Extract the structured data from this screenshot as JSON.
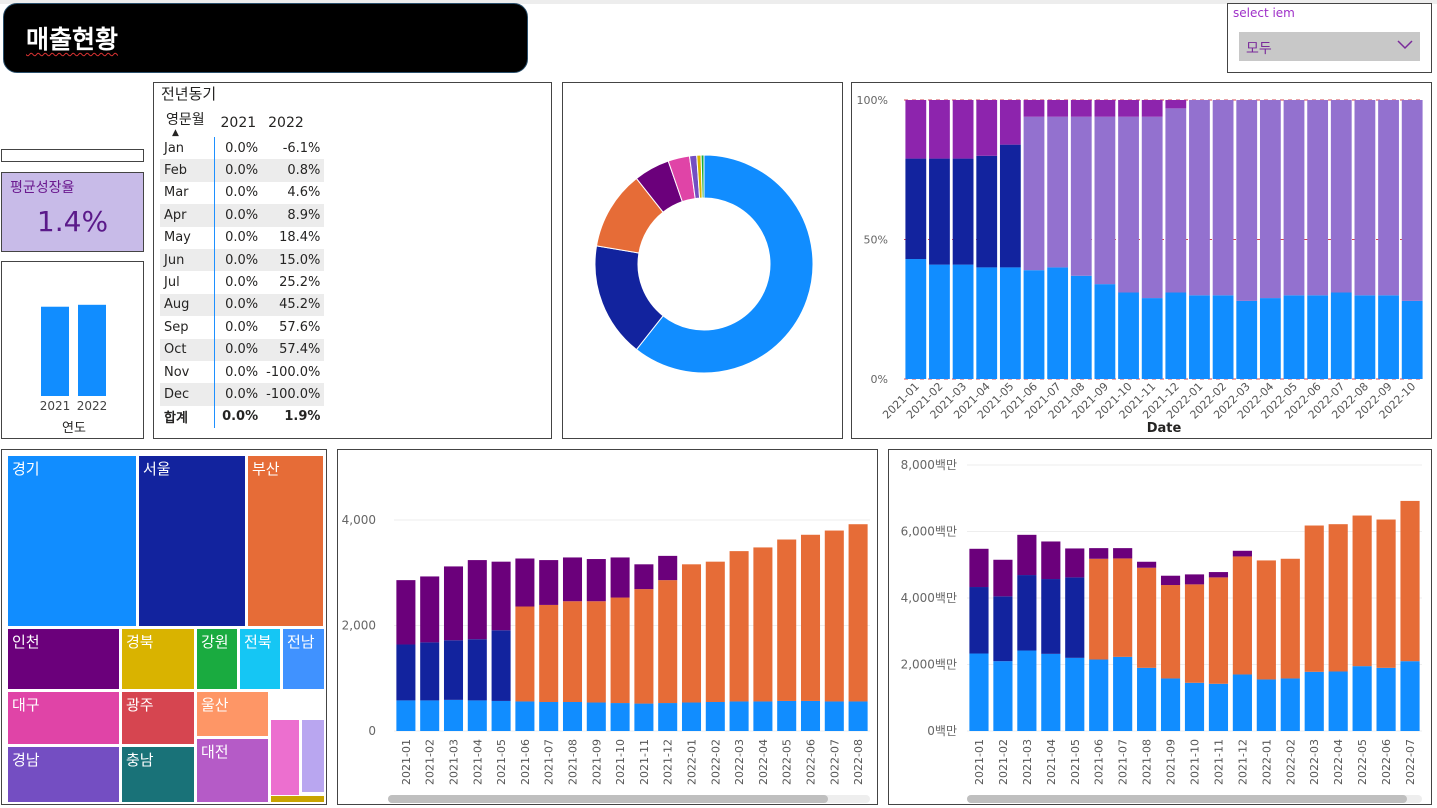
{
  "header": {
    "title": "매출현황"
  },
  "slicer": {
    "label": "select iem",
    "value": "모두",
    "chevron_icon": "chevron-down-icon"
  },
  "kpi": {
    "label": "평균성장율",
    "value": "1.4%"
  },
  "colors": {
    "blue": "#118dff",
    "navy": "#12239e",
    "orange": "#e66c37",
    "purple": "#6b007b",
    "magenta": "#e044a7",
    "lavender": "#9371cf",
    "violet": "#8d24ad",
    "kpi_bg": "#c8bbe8"
  },
  "year_chart": {
    "categories": [
      "2021",
      "2022"
    ],
    "values": [
      93,
      95
    ],
    "xlabel": "연도"
  },
  "yoy_table": {
    "title": "전년동기",
    "headers": [
      "영문월",
      "2021",
      "2022"
    ],
    "rows": [
      [
        "Jan",
        "0.0%",
        "-6.1%"
      ],
      [
        "Feb",
        "0.0%",
        "0.8%"
      ],
      [
        "Mar",
        "0.0%",
        "4.6%"
      ],
      [
        "Apr",
        "0.0%",
        "8.9%"
      ],
      [
        "May",
        "0.0%",
        "18.4%"
      ],
      [
        "Jun",
        "0.0%",
        "15.0%"
      ],
      [
        "Jul",
        "0.0%",
        "25.2%"
      ],
      [
        "Aug",
        "0.0%",
        "45.2%"
      ],
      [
        "Sep",
        "0.0%",
        "57.6%"
      ],
      [
        "Oct",
        "0.0%",
        "57.4%"
      ],
      [
        "Nov",
        "0.0%",
        "-100.0%"
      ],
      [
        "Dec",
        "0.0%",
        "-100.0%"
      ]
    ],
    "total": [
      "합계",
      "0.0%",
      "1.9%"
    ]
  },
  "donut": {
    "values": [
      57,
      16,
      11,
      5,
      3,
      1,
      0.6,
      0.4
    ],
    "colors": [
      "#118dff",
      "#12239e",
      "#e66c37",
      "#6b007b",
      "#e044a7",
      "#744ec2",
      "#d9b300",
      "#1aab40"
    ]
  },
  "treemap": {
    "labels": [
      "경기",
      "서울",
      "부산",
      "인천",
      "경북",
      "강원",
      "전북",
      "전남",
      "대구",
      "광주",
      "울산",
      "경남",
      "충남",
      "대전"
    ]
  },
  "chart_data": [
    {
      "type": "bar",
      "stacked": "percent",
      "xlabel": "Date",
      "ylabel": "",
      "yticks": [
        "0%",
        "50%",
        "100%"
      ],
      "categories": [
        "2021-01",
        "2021-02",
        "2021-03",
        "2021-04",
        "2021-05",
        "2021-06",
        "2021-07",
        "2021-08",
        "2021-09",
        "2021-10",
        "2021-11",
        "2021-12",
        "2022-01",
        "2022-02",
        "2022-03",
        "2022-04",
        "2022-05",
        "2022-06",
        "2022-07",
        "2022-08",
        "2022-09",
        "2022-10"
      ],
      "series": [
        {
          "color": "#118dff",
          "values": [
            43,
            41,
            41,
            40,
            40,
            39,
            40,
            37,
            34,
            31,
            29,
            31,
            30,
            30,
            28,
            29,
            30,
            30,
            31,
            30,
            30,
            28
          ]
        },
        {
          "color": "#12239e",
          "values": [
            36,
            38,
            38,
            40,
            44,
            0,
            0,
            0,
            0,
            0,
            0,
            0,
            0,
            0,
            0,
            0,
            0,
            0,
            0,
            0,
            0,
            0
          ]
        },
        {
          "color": "#9371cf",
          "values": [
            0,
            0,
            0,
            0,
            0,
            55,
            54,
            57,
            60,
            63,
            65,
            66,
            70,
            70,
            72,
            71,
            70,
            70,
            69,
            70,
            70,
            72
          ]
        },
        {
          "color": "#8d24ad",
          "values": [
            21,
            21,
            21,
            20,
            16,
            6,
            6,
            6,
            6,
            6,
            6,
            3,
            0,
            0,
            0,
            0,
            0,
            0,
            0,
            0,
            0,
            0
          ]
        }
      ]
    },
    {
      "type": "bar",
      "stacked": true,
      "yticks": [
        "0",
        "2,000",
        "4,000"
      ],
      "ylim": [
        0,
        4400
      ],
      "categories": [
        "2021-01",
        "2021-02",
        "2021-03",
        "2021-04",
        "2021-05",
        "2021-06",
        "2021-07",
        "2021-08",
        "2021-09",
        "2021-10",
        "2021-11",
        "2021-12",
        "2022-01",
        "2022-02",
        "2022-03",
        "2022-04",
        "2022-05",
        "2022-06",
        "2022-07",
        "2022-08"
      ],
      "series": [
        {
          "color": "#118dff",
          "values": [
            580,
            580,
            590,
            580,
            570,
            560,
            550,
            550,
            540,
            530,
            520,
            530,
            540,
            550,
            560,
            560,
            570,
            570,
            560,
            560
          ]
        },
        {
          "color": "#12239e",
          "values": [
            1060,
            1100,
            1130,
            1160,
            1340,
            0,
            0,
            0,
            0,
            0,
            0,
            0,
            0,
            0,
            0,
            0,
            0,
            0,
            0,
            0
          ]
        },
        {
          "color": "#e66c37",
          "values": [
            0,
            0,
            0,
            0,
            0,
            1800,
            1840,
            1910,
            1920,
            2000,
            2170,
            2330,
            2620,
            2660,
            2850,
            2920,
            3060,
            3150,
            3240,
            3360
          ]
        },
        {
          "color": "#6b007b",
          "values": [
            1220,
            1250,
            1400,
            1500,
            1300,
            910,
            850,
            830,
            800,
            760,
            470,
            460,
            0,
            0,
            0,
            0,
            0,
            0,
            0,
            0
          ]
        }
      ]
    },
    {
      "type": "bar",
      "stacked": true,
      "yticks": [
        "0백만",
        "2,000백만",
        "4,000백만",
        "6,000백만",
        "8,000백만"
      ],
      "ylim": [
        0,
        8000
      ],
      "categories": [
        "2021-01",
        "2021-02",
        "2021-03",
        "2021-04",
        "2021-05",
        "2021-06",
        "2021-07",
        "2021-08",
        "2021-09",
        "2021-10",
        "2021-11",
        "2021-12",
        "2022-01",
        "2022-02",
        "2022-03",
        "2022-04",
        "2022-05",
        "2022-06",
        "2022-07"
      ],
      "series": [
        {
          "color": "#118dff",
          "values": [
            2330,
            2100,
            2420,
            2320,
            2200,
            2150,
            2230,
            1900,
            1580,
            1450,
            1420,
            1700,
            1550,
            1580,
            1780,
            1790,
            1950,
            1900,
            2100
          ]
        },
        {
          "color": "#12239e",
          "values": [
            2000,
            1950,
            2270,
            2250,
            2420,
            0,
            0,
            0,
            0,
            0,
            0,
            0,
            0,
            0,
            0,
            0,
            0,
            0,
            0
          ]
        },
        {
          "color": "#e66c37",
          "values": [
            0,
            0,
            0,
            0,
            0,
            3030,
            2960,
            3010,
            2810,
            2960,
            3200,
            3550,
            3580,
            3600,
            4400,
            4430,
            4530,
            4460,
            4820
          ]
        },
        {
          "color": "#6b007b",
          "values": [
            1150,
            1100,
            1210,
            1130,
            870,
            320,
            310,
            180,
            280,
            300,
            160,
            170,
            0,
            0,
            0,
            0,
            0,
            0,
            0
          ]
        }
      ]
    }
  ]
}
